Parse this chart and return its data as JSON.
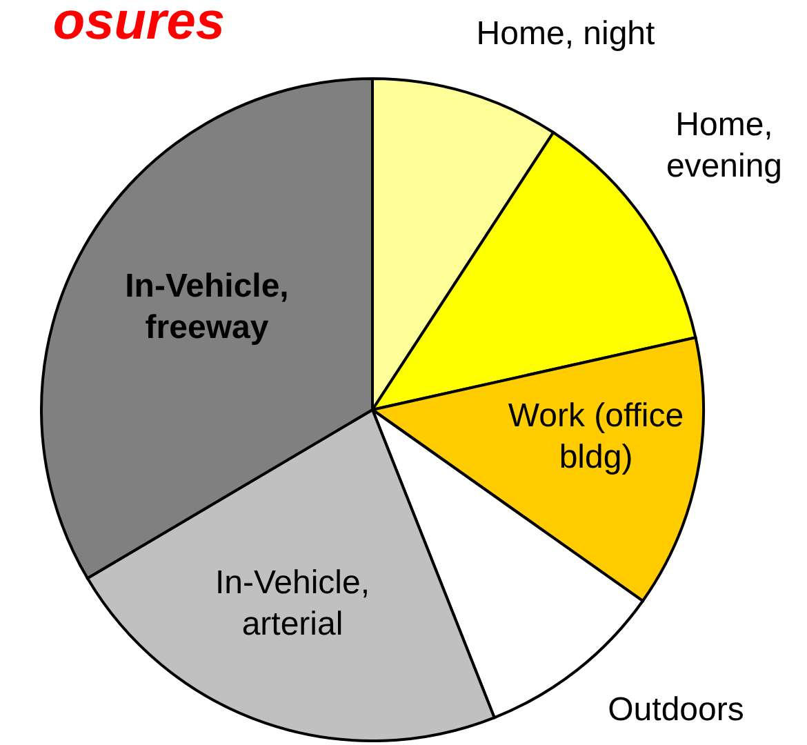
{
  "chart_data": {
    "type": "pie",
    "title": "osures",
    "categories": [
      "Home, night",
      "Home, evening",
      "Work (office bldg)",
      "Outdoors",
      "In-Vehicle, arterial",
      "In-Vehicle, freeway"
    ],
    "values": [
      9.2,
      12.3,
      13.3,
      9.2,
      22.5,
      33.5
    ],
    "colors": [
      "#ffff99",
      "#ffff00",
      "#ffcc00",
      "#ffffff",
      "#c0c0c0",
      "#808080"
    ]
  }
}
